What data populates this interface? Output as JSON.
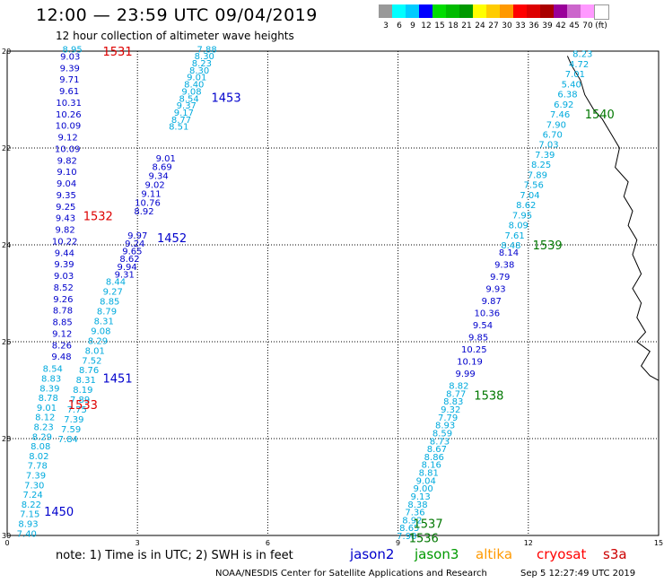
{
  "header": {
    "title": "12:00 — 23:59 UTC 09/04/2019",
    "subtitle": "12 hour collection of altimeter wave heights"
  },
  "scale": {
    "colors": [
      "#999999",
      "#00ffff",
      "#00ccff",
      "#0000ff",
      "#00dd00",
      "#00bb00",
      "#009900",
      "#ffff00",
      "#ffcc00",
      "#ff9900",
      "#ff0000",
      "#dd0000",
      "#aa0000",
      "#990099",
      "#cc66cc",
      "#ff99ff",
      "#ffffff"
    ],
    "labels": [
      "3",
      "6",
      "9",
      "12",
      "15",
      "18",
      "21",
      "24",
      "27",
      "30",
      "33",
      "36",
      "39",
      "42",
      "45",
      "70",
      "(ft)"
    ]
  },
  "chart_data": {
    "type": "map",
    "x_axis": {
      "min": 0,
      "max": 15,
      "ticks": [
        "0",
        "3",
        "6",
        "9",
        "12",
        "15"
      ]
    },
    "y_axis": {
      "min": 20,
      "max": 30,
      "ticks": [
        "20",
        "22",
        "24",
        "26",
        "28",
        "30"
      ]
    },
    "grid": true,
    "coastline": [
      [
        15.0,
        26.8
      ],
      [
        14.8,
        26.7
      ],
      [
        14.6,
        26.5
      ],
      [
        14.8,
        26.2
      ],
      [
        14.5,
        26.0
      ],
      [
        14.7,
        25.8
      ],
      [
        14.5,
        25.5
      ],
      [
        14.6,
        25.2
      ],
      [
        14.4,
        24.9
      ],
      [
        14.6,
        24.6
      ],
      [
        14.4,
        24.2
      ],
      [
        14.5,
        23.9
      ],
      [
        14.3,
        23.6
      ],
      [
        14.4,
        23.3
      ],
      [
        14.2,
        23.0
      ],
      [
        14.3,
        22.7
      ],
      [
        14.0,
        22.4
      ],
      [
        14.1,
        22.0
      ],
      [
        13.9,
        21.7
      ],
      [
        13.7,
        21.4
      ],
      [
        13.5,
        21.2
      ],
      [
        13.3,
        20.9
      ],
      [
        13.2,
        20.6
      ],
      [
        13.0,
        20.3
      ],
      [
        12.9,
        20.1
      ]
    ],
    "series": [
      {
        "name": "jason2",
        "color": "#0000cc"
      },
      {
        "name": "jason3",
        "color": "#009900"
      },
      {
        "name": "altika",
        "color": "#ff9900"
      },
      {
        "name": "cryosat",
        "color": "#ff0000"
      },
      {
        "name": "s3a",
        "color": "#cc0000"
      }
    ],
    "pass_labels": [
      {
        "text": "1531",
        "x": 2.2,
        "y": 20.0,
        "color": "#dd0000"
      },
      {
        "text": "1453",
        "x": 4.7,
        "y": 20.95,
        "color": "#0000cc"
      },
      {
        "text": "1532",
        "x": 1.75,
        "y": 23.4,
        "color": "#dd0000"
      },
      {
        "text": "1452",
        "x": 3.45,
        "y": 23.85,
        "color": "#0000cc"
      },
      {
        "text": "1451",
        "x": 2.2,
        "y": 26.75,
        "color": "#0000cc"
      },
      {
        "text": "1533",
        "x": 1.4,
        "y": 27.3,
        "color": "#dd0000"
      },
      {
        "text": "1450",
        "x": 0.85,
        "y": 29.5,
        "color": "#0000cc"
      },
      {
        "text": "1540",
        "x": 13.3,
        "y": 21.3,
        "color": "#007700"
      },
      {
        "text": "1539",
        "x": 12.1,
        "y": 24.0,
        "color": "#007700"
      },
      {
        "text": "1538",
        "x": 10.75,
        "y": 27.1,
        "color": "#007700"
      },
      {
        "text": "1537",
        "x": 9.35,
        "y": 29.75,
        "color": "#007700"
      },
      {
        "text": "1536",
        "x": 9.25,
        "y": 30.05,
        "color": "#007700"
      }
    ],
    "tracks": [
      {
        "pass": "1531",
        "color": "#0000cc",
        "x0": 1.45,
        "y0": 20.1,
        "x1": 1.25,
        "y1": 26.3,
        "values": [
          "9.03",
          "9.39",
          "9.71",
          "9.61",
          "10.31",
          "10.26",
          "10.09",
          "9.12",
          "10.09",
          "9.82",
          "9.10",
          "9.04",
          "9.35",
          "9.25",
          "9.43",
          "9.82",
          "10.22",
          "9.44",
          "9.39",
          "9.03",
          "8.52",
          "9.26",
          "8.78",
          "8.85",
          "9.12",
          "8.26",
          "9.48"
        ]
      },
      {
        "pass": "1531",
        "color": "#00aadd",
        "x0": 1.5,
        "y0": 19.95,
        "x1": 1.5,
        "y1": 19.95,
        "values": [
          "8.95"
        ]
      },
      {
        "pass": "1533",
        "color": "#00aadd",
        "x0": 1.05,
        "y0": 26.55,
        "x1": 0.45,
        "y1": 29.95,
        "values": [
          "8.54",
          "8.83",
          "8.39",
          "8.78",
          "9.01",
          "8.12",
          "8.23",
          "8.29",
          "8.08",
          "8.02",
          "7.78",
          "7.39",
          "7.30",
          "7.24",
          "8.22",
          "7.15",
          "8.93",
          "7.40"
        ]
      },
      {
        "pass": "1453",
        "color": "#00aadd",
        "x0": 4.6,
        "y0": 19.95,
        "x1": 3.95,
        "y1": 21.55,
        "values": [
          "7.88",
          "8.30",
          "8.23",
          "8.30",
          "9.01",
          "8.40",
          "9.08",
          "8.54",
          "9.37",
          "9.17",
          "8.77",
          "8.51"
        ]
      },
      {
        "pass": "1452",
        "color": "#0000cc",
        "x0": 3.65,
        "y0": 22.2,
        "x1": 3.15,
        "y1": 23.3,
        "values": [
          "9.01",
          "8.69",
          "9.34",
          "9.02",
          "9.11",
          "10.76",
          "8.92"
        ]
      },
      {
        "pass": "1452",
        "color": "#0000cc",
        "x0": 3.0,
        "y0": 23.8,
        "x1": 2.7,
        "y1": 24.6,
        "values": [
          "9.97",
          "9.24",
          "9.65",
          "8.62",
          "9.94",
          "9.31"
        ]
      },
      {
        "pass": "1451",
        "color": "#00aadd",
        "x0": 2.5,
        "y0": 24.75,
        "x1": 1.4,
        "y1": 28.0,
        "values": [
          "8.44",
          "9.27",
          "8.85",
          "8.79",
          "8.31",
          "9.08",
          "8.29",
          "8.01",
          "7.52",
          "8.76",
          "8.31",
          "8.19",
          "7.89",
          "7.75",
          "7.39",
          "7.59",
          "7.84"
        ]
      },
      {
        "pass": "1540",
        "color": "#00aadd",
        "x0": 13.25,
        "y0": 20.05,
        "x1": 11.6,
        "y1": 24.0,
        "values": [
          "8.23",
          "4.72",
          "7.01",
          "5.40",
          "6.38",
          "6.92",
          "7.46",
          "7.90",
          "6.70",
          "7.03",
          "7.39",
          "8.25",
          "7.89",
          "7.56",
          "7.04",
          "8.62",
          "7.95",
          "8.09",
          "7.61",
          "8.48"
        ]
      },
      {
        "pass": "1539",
        "color": "#0000cc",
        "x0": 11.55,
        "y0": 24.15,
        "x1": 10.55,
        "y1": 26.65,
        "values": [
          "8.14",
          "9.38",
          "9.79",
          "9.93",
          "9.87",
          "10.36",
          "9.54",
          "9.85",
          "10.25",
          "10.19",
          "9.99"
        ]
      },
      {
        "pass": "1538",
        "color": "#00aadd",
        "x0": 10.4,
        "y0": 26.9,
        "x1": 9.2,
        "y1": 30.0,
        "values": [
          "8.82",
          "8.77",
          "8.83",
          "9.32",
          "7.79",
          "8.93",
          "8.59",
          "8.73",
          "8.67",
          "8.86",
          "8.16",
          "8.81",
          "9.04",
          "9.00",
          "9.13",
          "8.38",
          "7.36",
          "8.92",
          "8.65",
          "7.98"
        ]
      }
    ]
  },
  "legend": {
    "note": "note: 1) Time is in UTC; 2) SWH is in feet",
    "sats": [
      {
        "label": "jason2",
        "color": "#0000cc",
        "left": 390
      },
      {
        "label": "jason3",
        "color": "#009900",
        "left": 462
      },
      {
        "label": "altika",
        "color": "#ff9900",
        "left": 530
      },
      {
        "label": "cryosat",
        "color": "#ff0000",
        "left": 598
      },
      {
        "label": "s3a",
        "color": "#cc0000",
        "left": 672
      }
    ]
  },
  "footer": {
    "credit": "NOAA/NESDIS Center for Satellite Applications and Research",
    "stamp": "Sep  5 12:27:49 UTC 2019"
  }
}
